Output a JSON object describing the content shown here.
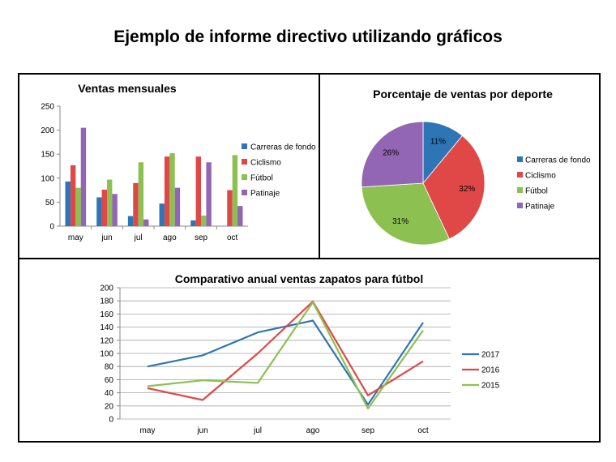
{
  "page": {
    "title": "Ejemplo de informe directivo utilizando gráficos"
  },
  "chart_data": [
    {
      "type": "bar",
      "title": "Ventas mensuales",
      "categories": [
        "may",
        "jun",
        "jul",
        "ago",
        "sep",
        "oct"
      ],
      "ylim": [
        0,
        250
      ],
      "yticks": [
        0,
        50,
        100,
        150,
        200,
        250
      ],
      "grid": false,
      "legend": "right",
      "series": [
        {
          "name": "Carreras de fondo",
          "color": "#2E75B6",
          "values": [
            93,
            60,
            21,
            47,
            12,
            0
          ]
        },
        {
          "name": "Ciclismo",
          "color": "#E04848",
          "values": [
            127,
            76,
            90,
            145,
            145,
            75
          ]
        },
        {
          "name": "Fútbol",
          "color": "#8CC152",
          "values": [
            80,
            97,
            133,
            152,
            22,
            148
          ]
        },
        {
          "name": "Patinaje",
          "color": "#9266B4",
          "values": [
            205,
            67,
            14,
            80,
            133,
            42
          ]
        }
      ]
    },
    {
      "type": "pie",
      "title": "Porcentaje de ventas por deporte",
      "legend": "right",
      "slices": [
        {
          "name": "Carreras de fondo",
          "color": "#2E75B6",
          "value": 11,
          "label": "11%"
        },
        {
          "name": "Ciclismo",
          "color": "#E04848",
          "value": 32,
          "label": "32%"
        },
        {
          "name": "Fútbol",
          "color": "#8CC152",
          "value": 31,
          "label": "31%"
        },
        {
          "name": "Patinaje",
          "color": "#9266B4",
          "value": 26,
          "label": "26%"
        }
      ]
    },
    {
      "type": "line",
      "title": "Comparativo anual ventas zapatos para fútbol",
      "categories": [
        "may",
        "jun",
        "jul",
        "ago",
        "sep",
        "oct"
      ],
      "ylim": [
        0,
        200
      ],
      "yticks": [
        0,
        20,
        40,
        60,
        80,
        100,
        120,
        140,
        160,
        180,
        200
      ],
      "grid": true,
      "legend": "right",
      "series": [
        {
          "name": "2017",
          "color": "#2E75B6",
          "values": [
            80,
            97,
            132,
            150,
            22,
            147
          ]
        },
        {
          "name": "2016",
          "color": "#E04848",
          "values": [
            47,
            29,
            100,
            179,
            36,
            88
          ]
        },
        {
          "name": "2015",
          "color": "#8CC152",
          "values": [
            50,
            59,
            55,
            178,
            16,
            135
          ]
        }
      ]
    }
  ]
}
